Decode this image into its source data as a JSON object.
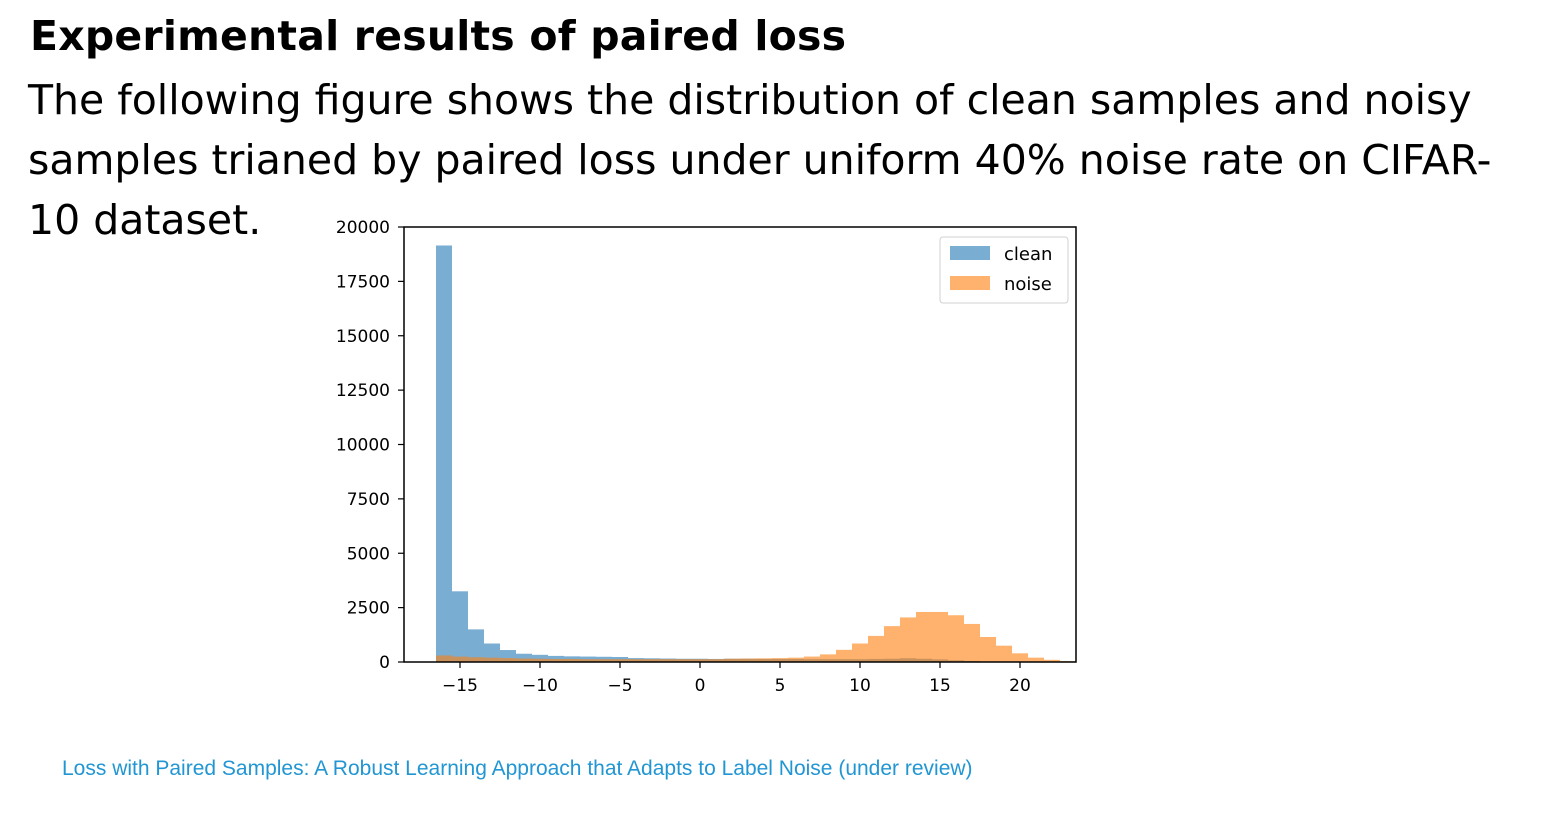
{
  "slide": {
    "title": "Experimental results of paired loss",
    "body": "The following figure shows the distribution of clean samples and noisy samples trianed by paired loss under uniform 40% noise rate on CIFAR-10 dataset.",
    "footer": "Loss with Paired Samples: A Robust Learning Approach that Adapts to Label Noise (under review)"
  },
  "chart_data": {
    "type": "histogram",
    "title": "",
    "xlabel": "",
    "ylabel": "",
    "xlim": [
      -18.5,
      23.5
    ],
    "ylim": [
      0,
      20000
    ],
    "xticks": [
      -15,
      -10,
      -5,
      0,
      5,
      10,
      15,
      20
    ],
    "xtick_labels": [
      "−15",
      "−10",
      "−5",
      "0",
      "5",
      "10",
      "15",
      "20"
    ],
    "yticks": [
      0,
      2500,
      5000,
      7500,
      10000,
      12500,
      15000,
      17500,
      20000
    ],
    "ytick_labels": [
      "0",
      "2500",
      "5000",
      "7500",
      "10000",
      "12500",
      "15000",
      "17500",
      "20000"
    ],
    "bin_start": -16.5,
    "bin_width": 1,
    "legend_position": "top-right",
    "series": [
      {
        "name": "clean",
        "color": "#1f77b4",
        "values": [
          19150,
          3250,
          1500,
          850,
          550,
          380,
          330,
          280,
          260,
          250,
          240,
          230,
          180,
          170,
          160,
          150,
          150,
          140,
          150,
          150,
          140,
          140,
          140,
          130,
          130,
          130,
          130,
          140,
          150,
          170,
          150,
          120,
          80,
          50,
          20,
          10,
          5,
          2,
          1,
          0
        ]
      },
      {
        "name": "noise",
        "color": "#ff7f0e",
        "values": [
          300,
          250,
          220,
          200,
          180,
          160,
          150,
          140,
          140,
          130,
          130,
          130,
          130,
          130,
          130,
          130,
          130,
          130,
          150,
          160,
          170,
          180,
          200,
          250,
          350,
          560,
          850,
          1200,
          1650,
          2050,
          2300,
          2300,
          2150,
          1750,
          1150,
          750,
          400,
          200,
          100,
          40
        ]
      }
    ]
  }
}
